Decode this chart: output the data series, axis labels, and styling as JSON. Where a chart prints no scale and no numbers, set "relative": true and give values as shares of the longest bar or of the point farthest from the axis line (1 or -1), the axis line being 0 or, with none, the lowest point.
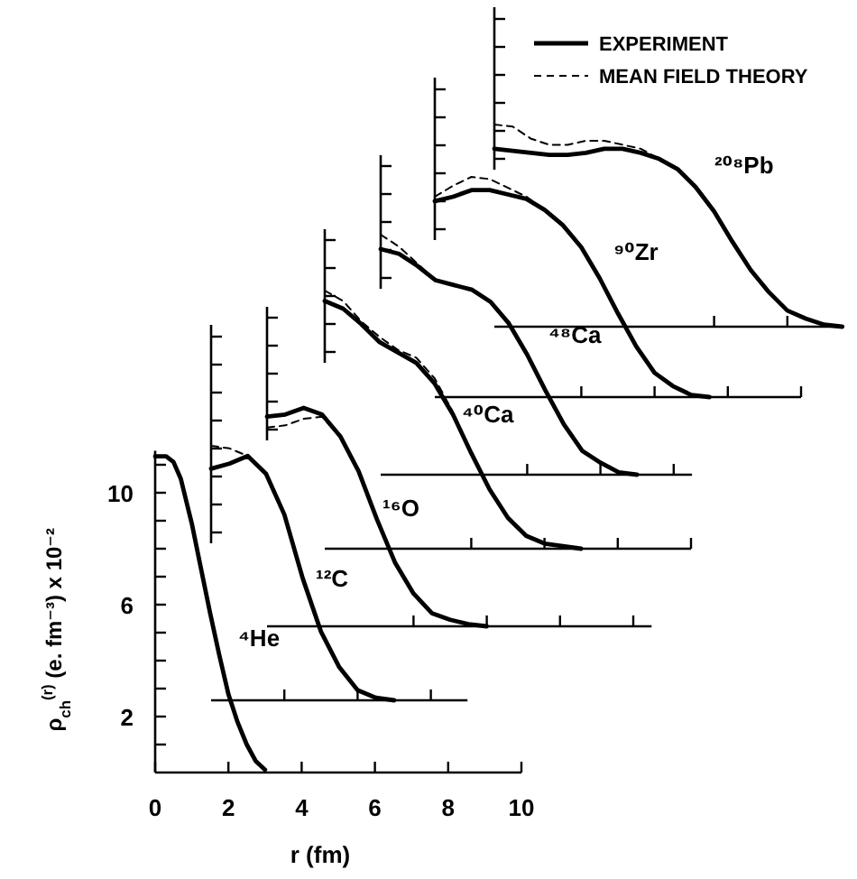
{
  "chart_data": [
    {
      "type": "line",
      "title": "⁴He",
      "xlabel": "r (fm)",
      "ylabel": "ρ$_{ch}$$^{(r)}$ (e. fm⁻³) x 10⁻²",
      "xlim": [
        0,
        10
      ],
      "ylim": [
        0,
        11.5
      ],
      "xticks": [
        0,
        2,
        4,
        6,
        8,
        10
      ],
      "yticks": [
        {
          "value": 1,
          "label": null
        },
        2,
        {
          "value": 3,
          "label": null
        },
        {
          "value": 4,
          "label": null
        },
        {
          "value": 5,
          "label": null
        },
        6,
        {
          "value": 7,
          "label": null
        },
        {
          "value": 8,
          "label": null
        },
        {
          "value": 9,
          "label": null
        },
        10,
        {
          "value": 11,
          "label": null
        }
      ],
      "series": [
        {
          "color": "#000000",
          "line_style": "solid",
          "x": [
            0,
            0.3,
            0.5,
            0.7,
            1,
            1.25,
            1.5,
            1.75,
            2,
            2.25,
            2.5,
            2.75,
            3
          ],
          "values": [
            11.3,
            11.3,
            11.1,
            10.5,
            8.9,
            7.3,
            5.7,
            4.2,
            2.8,
            1.8,
            1.0,
            0.4,
            0.1
          ]
        }
      ]
    },
    {
      "type": "line",
      "title": "¹²C",
      "relative": true,
      "categories": [
        null,
        null,
        null,
        null,
        null,
        null,
        null,
        null,
        null,
        null,
        null,
        null,
        null,
        null,
        null
      ],
      "series": [
        {
          "color": "#000000",
          "line_style": "solid",
          "values": [
            0.91,
            0.93,
            0.96,
            0.89,
            0.73,
            0.48,
            0.27,
            0.13,
            0.04,
            0.01,
            0,
            null,
            null,
            null,
            null
          ]
        },
        {
          "color": "#000000",
          "line_style": "dashed",
          "values": [
            1,
            0.99,
            0.96,
            0.89,
            null,
            null,
            null,
            null,
            null,
            null,
            null,
            null,
            null,
            null,
            null
          ]
        }
      ]
    },
    {
      "type": "line",
      "title": "¹⁶O",
      "relative": true,
      "categories": [
        null,
        null,
        null,
        null,
        null,
        null,
        null,
        null,
        null,
        null,
        null,
        null,
        null,
        null,
        null,
        null,
        null,
        null,
        null,
        null,
        null,
        null
      ],
      "series": [
        {
          "color": "#000000",
          "line_style": "solid",
          "values": [
            0.96,
            0.97,
            1,
            0.97,
            0.87,
            0.71,
            0.49,
            0.29,
            0.15,
            0.06,
            0.03,
            0.01,
            0,
            null,
            null,
            null,
            null,
            null,
            null,
            null,
            null,
            null
          ]
        },
        {
          "color": "#000000",
          "line_style": "dashed",
          "values": [
            0.91,
            0.92,
            0.95,
            0.96,
            0.87,
            null,
            null,
            null,
            null,
            null,
            null,
            null,
            null,
            null,
            null,
            null,
            null,
            null,
            null,
            null,
            null,
            null
          ]
        }
      ]
    },
    {
      "type": "line",
      "title": "⁴⁰Ca",
      "relative": true,
      "categories": [
        null,
        null,
        null,
        null,
        null,
        null,
        null,
        null,
        null,
        null,
        null,
        null,
        null,
        null,
        null,
        null,
        null,
        null,
        null,
        null,
        null
      ],
      "series": [
        {
          "color": "#000000",
          "line_style": "solid",
          "values": [
            0.96,
            0.93,
            0.87,
            0.8,
            0.76,
            0.72,
            0.64,
            0.52,
            0.37,
            0.23,
            0.12,
            0.05,
            0.02,
            0.01,
            0,
            null,
            null,
            null,
            null,
            null,
            null
          ]
        },
        {
          "color": "#000000",
          "line_style": "dashed",
          "values": [
            1,
            0.96,
            0.88,
            0.82,
            0.77,
            0.74,
            0.66,
            0.53,
            null,
            null,
            null,
            null,
            null,
            null,
            null,
            null,
            null,
            null,
            null,
            null,
            null
          ]
        }
      ]
    },
    {
      "type": "line",
      "title": "⁴⁸Ca",
      "relative": true,
      "categories": [
        null,
        null,
        null,
        null,
        null,
        null,
        null,
        null,
        null,
        null,
        null,
        null,
        null,
        null,
        null,
        null,
        null,
        null
      ],
      "series": [
        {
          "color": "#000000",
          "line_style": "solid",
          "values": [
            0.94,
            0.92,
            0.87,
            0.81,
            0.79,
            0.77,
            0.72,
            0.63,
            0.5,
            0.35,
            0.21,
            0.1,
            0.05,
            0.01,
            0,
            null,
            null,
            null
          ]
        },
        {
          "color": "#000000",
          "line_style": "dashed",
          "values": [
            1,
            0.95,
            0.88,
            0.81,
            null,
            null,
            null,
            null,
            null,
            null,
            null,
            null,
            null,
            null,
            null,
            null,
            null,
            null
          ]
        }
      ]
    },
    {
      "type": "line",
      "title": "⁹⁰Zr",
      "relative": true,
      "categories": [
        null,
        null,
        null,
        null,
        null,
        null,
        null,
        null,
        null,
        null,
        null,
        null,
        null,
        null,
        null,
        null,
        null,
        null,
        null,
        null,
        null
      ],
      "series": [
        {
          "color": "#000000",
          "line_style": "solid",
          "values": [
            0.89,
            0.91,
            0.94,
            0.94,
            0.92,
            0.9,
            0.85,
            0.78,
            0.68,
            0.54,
            0.38,
            0.23,
            0.11,
            0.05,
            0.01,
            0,
            null,
            null,
            null,
            null,
            null
          ]
        },
        {
          "color": "#000000",
          "line_style": "dashed",
          "values": [
            0.91,
            0.96,
            1,
            0.99,
            0.95,
            0.91,
            0.85,
            null,
            null,
            null,
            null,
            null,
            null,
            null,
            null,
            null,
            null,
            null,
            null,
            null,
            null
          ]
        }
      ]
    },
    {
      "type": "line",
      "title": "²⁰⁸Pb",
      "relative": true,
      "legend": "top",
      "categories": [
        null,
        null,
        null,
        null,
        null,
        null,
        null,
        null,
        null,
        null,
        null,
        null,
        null,
        null,
        null,
        null,
        null,
        null,
        null,
        null
      ],
      "series": [
        {
          "name": "EXPERIMENT",
          "color": "#000000",
          "line_style": "solid",
          "values": [
            0.88,
            0.87,
            0.86,
            0.85,
            0.85,
            0.86,
            0.88,
            0.88,
            0.86,
            0.83,
            0.78,
            0.69,
            0.57,
            0.42,
            0.28,
            0.17,
            0.08,
            0.04,
            0.01,
            0
          ]
        },
        {
          "name": "MEAN FIELD THEORY",
          "color": "#000000",
          "line_style": "dashed",
          "values": [
            1,
            0.99,
            0.93,
            0.9,
            0.9,
            0.92,
            0.92,
            0.9,
            0.88,
            0.83,
            null,
            null,
            null,
            null,
            null,
            null,
            null,
            null,
            null,
            null
          ]
        }
      ]
    }
  ]
}
